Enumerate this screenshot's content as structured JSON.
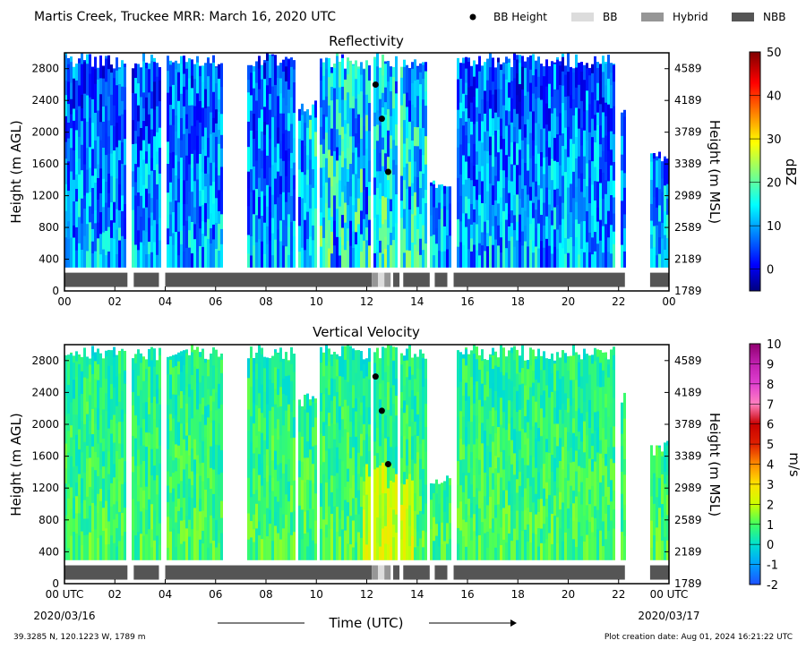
{
  "figure": {
    "title": "Martis Creek, Truckee MRR:  March 16, 2020 UTC",
    "location": "39.3285 N, 120.1223 W, 1789 m",
    "creation": "Plot creation date: Aug 01, 2024 16:21:22 UTC",
    "xlabel": "Time (UTC)",
    "x_start_date": "2020/03/16",
    "x_end_date": "2020/03/17"
  },
  "legend": [
    {
      "label": "BB Height",
      "kind": "dot",
      "color": "#000000"
    },
    {
      "label": "BB",
      "kind": "patch",
      "color": "#dcdcdc"
    },
    {
      "label": "Hybrid",
      "kind": "patch",
      "color": "#969696"
    },
    {
      "label": "NBB",
      "kind": "patch",
      "color": "#555555"
    }
  ],
  "chart_data": [
    {
      "type": "heatmap",
      "title": "Reflectivity",
      "xlabel": "Time (UTC)",
      "ylabel": "Height (m AGL)",
      "ylabel_right": "Height (m MSL)",
      "xlim": [
        0,
        24
      ],
      "ylim": [
        0,
        3000
      ],
      "x_ticks": [
        "00",
        "02",
        "04",
        "06",
        "08",
        "10",
        "12",
        "14",
        "16",
        "18",
        "20",
        "22",
        "00"
      ],
      "y_ticks": [
        0,
        400,
        800,
        1200,
        1600,
        2000,
        2400,
        2800
      ],
      "y_ticks_right": [
        "1789",
        "2189",
        "2589",
        "2989",
        "3389",
        "3789",
        "4189",
        "4589"
      ],
      "colorbar": {
        "label": "dBZ",
        "min": -5,
        "max": 50,
        "ticks": [
          0,
          10,
          20,
          30,
          40,
          50
        ],
        "colormap": "jet"
      },
      "bb_height_points": [
        {
          "x": 12.35,
          "y": 2600
        },
        {
          "x": 12.6,
          "y": 2170
        },
        {
          "x": 12.85,
          "y": 1500
        }
      ],
      "classification_segments": [
        {
          "start": 0.0,
          "end": 2.5,
          "class": "NBB"
        },
        {
          "start": 2.75,
          "end": 3.75,
          "class": "NBB"
        },
        {
          "start": 4.0,
          "end": 12.2,
          "class": "NBB"
        },
        {
          "start": 12.2,
          "end": 12.45,
          "class": "Hybrid"
        },
        {
          "start": 12.45,
          "end": 12.7,
          "class": "BB"
        },
        {
          "start": 12.7,
          "end": 12.95,
          "class": "Hybrid"
        },
        {
          "start": 13.05,
          "end": 13.3,
          "class": "NBB"
        },
        {
          "start": 13.45,
          "end": 14.5,
          "class": "NBB"
        },
        {
          "start": 14.7,
          "end": 15.2,
          "class": "NBB"
        },
        {
          "start": 15.45,
          "end": 22.25,
          "class": "NBB"
        },
        {
          "start": 23.25,
          "end": 24.0,
          "class": "NBB"
        }
      ]
    },
    {
      "type": "heatmap",
      "title": "Vertical Velocity",
      "xlabel": "Time (UTC)",
      "ylabel": "Height (m AGL)",
      "ylabel_right": "Height (m MSL)",
      "xlim": [
        0,
        24
      ],
      "ylim": [
        0,
        3000
      ],
      "x_ticks": [
        "00 UTC",
        "02",
        "04",
        "06",
        "08",
        "10",
        "12",
        "14",
        "16",
        "18",
        "20",
        "22",
        "00 UTC"
      ],
      "y_ticks": [
        0,
        400,
        800,
        1200,
        1600,
        2000,
        2400,
        2800
      ],
      "y_ticks_right": [
        "1789",
        "2189",
        "2589",
        "2989",
        "3389",
        "3789",
        "4189",
        "4589"
      ],
      "colorbar": {
        "label": "m/s",
        "min": -2,
        "max": 10,
        "ticks": [
          -2,
          -1,
          0,
          1,
          2,
          3,
          4,
          5,
          6,
          7,
          8,
          9,
          10
        ],
        "colormap": "velocity"
      },
      "bb_height_points": [
        {
          "x": 12.35,
          "y": 2600
        },
        {
          "x": 12.6,
          "y": 2170
        },
        {
          "x": 12.85,
          "y": 1500
        }
      ],
      "classification_segments": [
        {
          "start": 0.0,
          "end": 2.5,
          "class": "NBB"
        },
        {
          "start": 2.75,
          "end": 3.75,
          "class": "NBB"
        },
        {
          "start": 4.0,
          "end": 12.2,
          "class": "NBB"
        },
        {
          "start": 12.2,
          "end": 12.45,
          "class": "Hybrid"
        },
        {
          "start": 12.45,
          "end": 12.7,
          "class": "BB"
        },
        {
          "start": 12.7,
          "end": 12.95,
          "class": "Hybrid"
        },
        {
          "start": 13.05,
          "end": 13.3,
          "class": "NBB"
        },
        {
          "start": 13.45,
          "end": 14.5,
          "class": "NBB"
        },
        {
          "start": 14.7,
          "end": 15.2,
          "class": "NBB"
        },
        {
          "start": 15.45,
          "end": 22.25,
          "class": "NBB"
        },
        {
          "start": 23.25,
          "end": 24.0,
          "class": "NBB"
        }
      ]
    }
  ]
}
